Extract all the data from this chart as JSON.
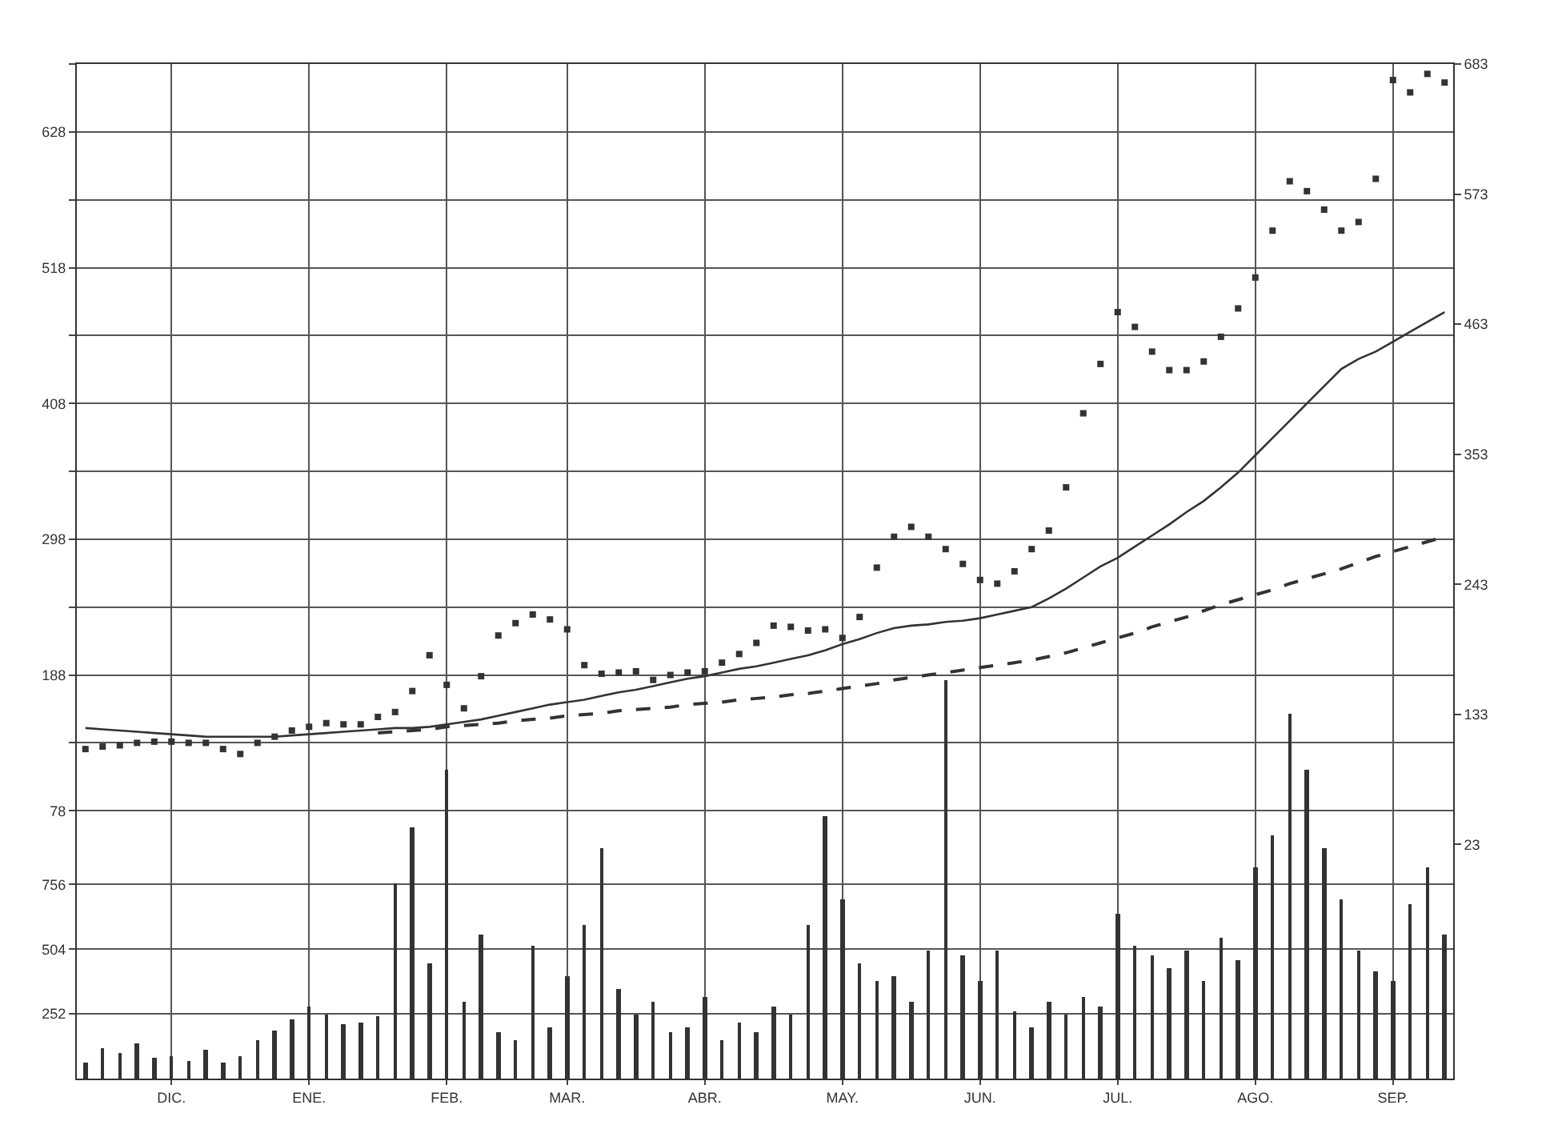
{
  "chart_data": {
    "type": "line",
    "categories": [
      null,
      null,
      null,
      null,
      null,
      "DIC.",
      null,
      null,
      null,
      null,
      null,
      null,
      null,
      "ENE.",
      null,
      null,
      null,
      null,
      null,
      null,
      null,
      "FEB.",
      null,
      null,
      null,
      null,
      null,
      null,
      "MAR.",
      null,
      null,
      null,
      null,
      null,
      null,
      null,
      "ABR.",
      null,
      null,
      null,
      null,
      null,
      null,
      null,
      "MAY.",
      null,
      null,
      null,
      null,
      null,
      null,
      null,
      "JUN.",
      null,
      null,
      null,
      null,
      null,
      null,
      null,
      "JUL.",
      null,
      null,
      null,
      null,
      null,
      null,
      null,
      "AGO.",
      null,
      null,
      null,
      null,
      null,
      null,
      null,
      "SEP.",
      null,
      null,
      null
    ],
    "ylim": [
      -139,
      683
    ],
    "yticks": [
      78,
      {
        "value": 133,
        "label": null
      },
      188,
      {
        "value": 243,
        "label": null
      },
      298,
      {
        "value": 353,
        "label": null
      },
      408,
      {
        "value": 463,
        "label": null
      },
      518,
      {
        "value": 573,
        "label": null
      },
      628,
      {
        "value": 683,
        "label": null
      }
    ],
    "y2lim": [
      0,
      3950
    ],
    "y2ticks": [
      252,
      504,
      756
    ],
    "y3lim": [
      -175,
      683
    ],
    "y3ticks": [
      23,
      133,
      243,
      353,
      463,
      573,
      683
    ],
    "grid": true,
    "series": [
      {
        "type": "scatter",
        "marker": "square",
        "color": "#333333",
        "values": [
          128,
          130,
          131,
          133,
          134,
          134,
          133,
          133,
          128,
          124,
          133,
          138,
          143,
          146,
          149,
          148,
          148,
          154,
          158,
          175,
          204,
          180,
          161,
          187,
          220,
          230,
          237,
          233,
          225,
          196,
          189,
          190,
          191,
          184,
          188,
          190,
          191,
          198,
          205,
          214,
          228,
          227,
          224,
          225,
          218,
          235,
          275,
          300,
          308,
          300,
          290,
          278,
          265,
          262,
          272,
          290,
          305,
          340,
          400,
          440,
          482,
          470,
          450,
          435,
          435,
          442,
          462,
          485,
          510,
          548,
          588,
          580,
          565,
          548,
          555,
          590,
          670,
          660,
          675,
          668
        ]
      },
      {
        "color": "#333333",
        "line_style": "solid",
        "values": [
          145,
          144,
          143,
          142,
          141,
          140,
          139,
          138,
          138,
          138,
          138,
          138,
          139,
          140,
          141,
          142,
          143,
          144,
          145,
          145,
          146,
          148,
          150,
          152,
          155,
          158,
          161,
          164,
          166,
          168,
          171,
          174,
          176,
          179,
          182,
          185,
          187,
          190,
          193,
          195,
          198,
          201,
          204,
          208,
          213,
          217,
          222,
          226,
          228,
          229,
          231,
          232,
          234,
          237,
          240,
          243,
          250,
          258,
          267,
          276,
          283,
          292,
          301,
          310,
          320,
          329,
          340,
          352,
          366,
          380,
          394,
          408,
          422,
          436,
          444,
          450,
          458,
          466,
          474,
          482
        ]
      },
      {
        "color": "#333333",
        "line_style": "dashed",
        "values": [
          null,
          null,
          null,
          null,
          null,
          null,
          null,
          null,
          null,
          null,
          null,
          null,
          null,
          null,
          null,
          null,
          null,
          141,
          142,
          143,
          144,
          146,
          147,
          148,
          149,
          151,
          152,
          153,
          155,
          156,
          157,
          159,
          160,
          161,
          162,
          164,
          165,
          166,
          168,
          169,
          170,
          172,
          173,
          175,
          177,
          179,
          181,
          184,
          186,
          188,
          190,
          192,
          194,
          196,
          198,
          200,
          203,
          206,
          210,
          214,
          218,
          222,
          227,
          231,
          235,
          240,
          245,
          249,
          253,
          257,
          262,
          266,
          270,
          274,
          279,
          284,
          288,
          292,
          296,
          300
        ]
      },
      {
        "type": "bar",
        "axis": "y2",
        "color": "#333333",
        "values": [
          60,
          120,
          100,
          140,
          80,
          90,
          70,
          110,
          60,
          90,
          150,
          190,
          230,
          280,
          250,
          210,
          220,
          240,
          760,
          980,
          450,
          1200,
          300,
          560,
          180,
          150,
          520,
          200,
          400,
          600,
          900,
          350,
          250,
          300,
          180,
          200,
          320,
          150,
          220,
          180,
          280,
          250,
          600,
          1020,
          700,
          450,
          380,
          400,
          300,
          500,
          1550,
          480,
          380,
          500,
          260,
          200,
          300,
          250,
          320,
          280,
          640,
          520,
          480,
          430,
          500,
          380,
          550,
          460,
          820,
          950,
          1420,
          1200,
          900,
          700,
          500,
          420,
          380,
          680,
          820,
          560
        ]
      }
    ]
  }
}
